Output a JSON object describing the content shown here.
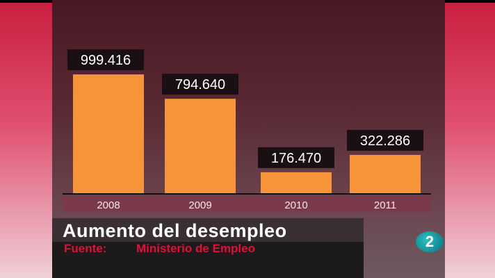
{
  "chart_data": {
    "type": "bar",
    "title": "Aumento del desempleo",
    "source_label": "Fuente:",
    "source": "Ministerio de Empleo",
    "categories": [
      "2008",
      "2009",
      "2010",
      "2011"
    ],
    "values": [
      999416,
      794640,
      176470,
      322286
    ],
    "value_labels": [
      "999.416",
      "794.640",
      "176.470",
      "322.286"
    ],
    "ylim": [
      0,
      1000000
    ],
    "grid": false,
    "bar_color": "#f7943a"
  },
  "channel_logo": "2"
}
